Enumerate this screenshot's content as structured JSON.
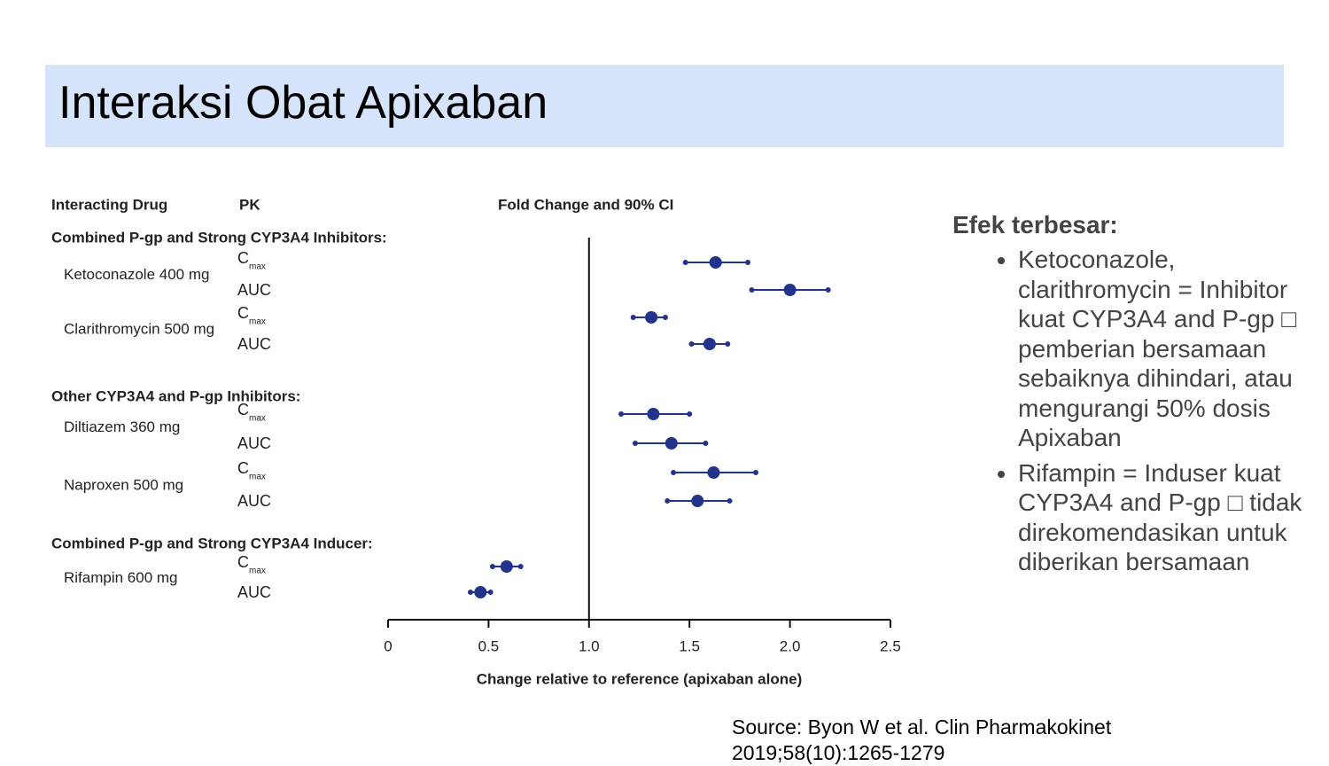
{
  "slide_title": "Interaksi Obat Apixaban",
  "chart_data": {
    "type": "forest",
    "column_headers": [
      "Interacting Drug",
      "PK",
      "Fold Change and 90% CI"
    ],
    "xlabel": "Change relative to reference (apixaban alone)",
    "xlim": [
      0,
      2.5
    ],
    "xticks": [
      0,
      0.5,
      {
        "value": 1,
        "label": "1.0"
      },
      1.5,
      {
        "value": 2,
        "label": "2.0"
      },
      2.5
    ],
    "reference_line": 1,
    "color": "#22338c",
    "groups": [
      {
        "name": "Combined P-gp and Strong CYP3A4 Inhibitors:",
        "drugs": [
          {
            "name": "Ketoconazole 400 mg",
            "pk": [
              {
                "symbol": "C",
                "subscript": "max"
              },
              "AUC"
            ],
            "values": [
              1.63,
              2.0
            ],
            "lower": [
              1.48,
              1.81
            ],
            "upper": [
              1.79,
              2.19
            ]
          },
          {
            "name": "Clarithromycin 500 mg",
            "pk": [
              {
                "symbol": "C",
                "subscript": "max"
              },
              "AUC"
            ],
            "values": [
              1.31,
              1.6
            ],
            "lower": [
              1.22,
              1.51
            ],
            "upper": [
              1.38,
              1.69
            ]
          }
        ]
      },
      {
        "name": "Other CYP3A4 and P-gp Inhibitors:",
        "drugs": [
          {
            "name": "Diltiazem 360 mg",
            "pk": [
              {
                "symbol": "C",
                "subscript": "max"
              },
              "AUC"
            ],
            "values": [
              1.32,
              1.41
            ],
            "lower": [
              1.16,
              1.23
            ],
            "upper": [
              1.5,
              1.58
            ]
          },
          {
            "name": "Naproxen 500 mg",
            "pk": [
              {
                "symbol": "C",
                "subscript": "max"
              },
              "AUC"
            ],
            "values": [
              1.62,
              1.54
            ],
            "lower": [
              1.42,
              1.39
            ],
            "upper": [
              1.83,
              1.7
            ]
          }
        ]
      },
      {
        "name": "Combined P-gp and Strong CYP3A4 Inducer:",
        "drugs": [
          {
            "name": "Rifampin 600 mg",
            "pk": [
              {
                "symbol": "C",
                "subscript": "max"
              },
              "AUC"
            ],
            "values": [
              0.59,
              0.46
            ],
            "lower": [
              0.52,
              0.41
            ],
            "upper": [
              0.66,
              0.51
            ]
          }
        ]
      }
    ]
  },
  "side_heading": "Efek terbesar:",
  "bullets": [
    "Ketoconazole, clarithromycin = Inhibitor kuat CYP3A4 and P-gp □ pemberian bersamaan sebaiknya dihindari, atau mengurangi 50% dosis Apixaban",
    "Rifampin = Induser kuat CYP3A4 and P-gp □ tidak direkomendasikan untuk diberikan bersamaan"
  ],
  "source": "Source: Byon W et al. Clin Pharmakokinet 2019;58(10):1265-1279"
}
